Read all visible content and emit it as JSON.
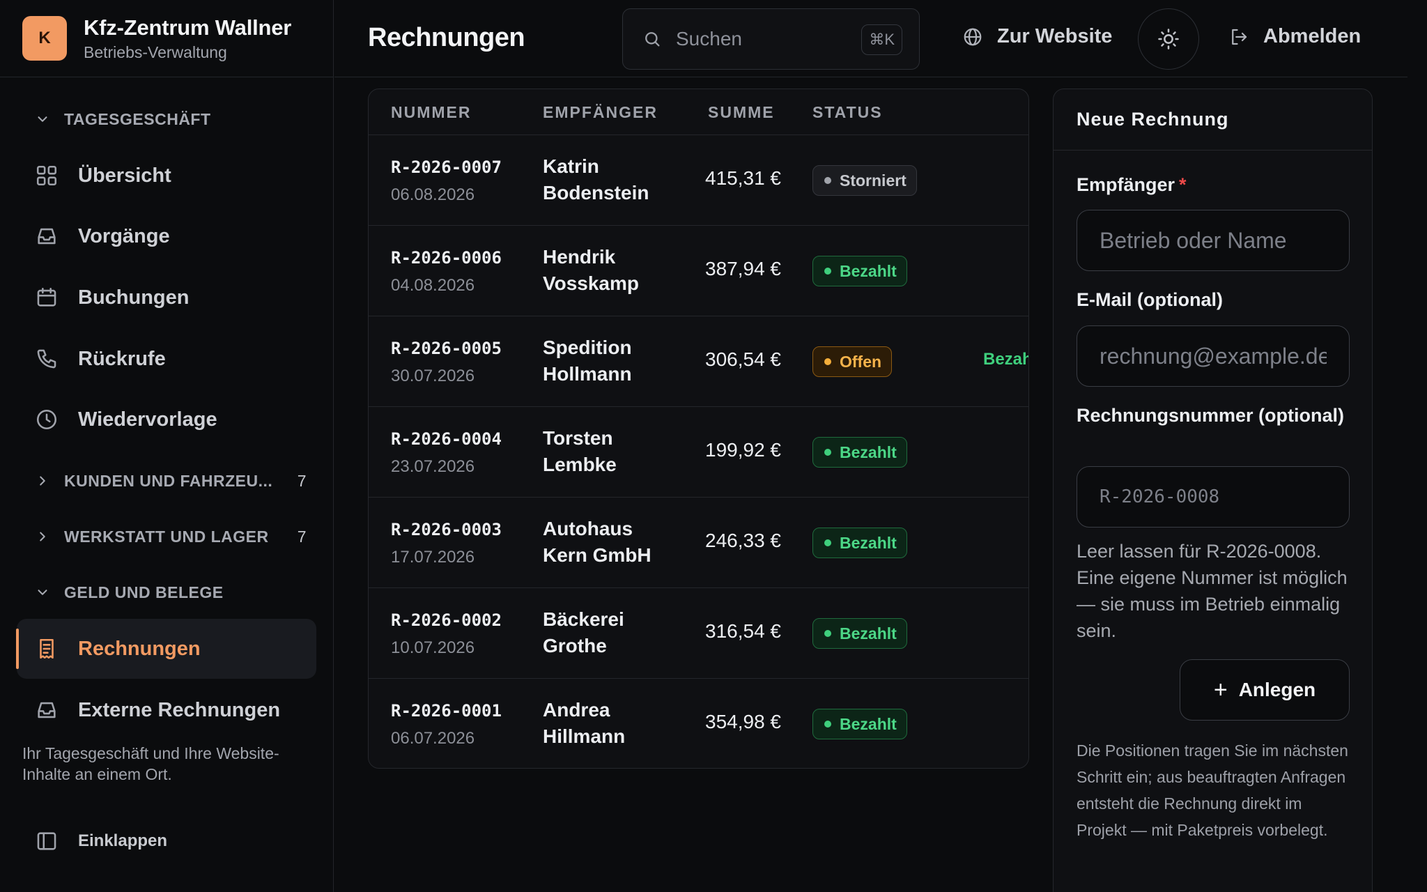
{
  "brand": {
    "logo_letter": "K",
    "title": "Kfz-Zentrum Wallner",
    "subtitle": "Betriebs-Verwaltung",
    "accent": "#f29a62"
  },
  "sidebar": {
    "groups": [
      {
        "label": "TAGESGESCHÄFT",
        "expanded": true
      },
      {
        "label": "KUNDEN UND FAHRZEU...",
        "count": "7",
        "expanded": false
      },
      {
        "label": "WERKSTATT UND LAGER",
        "count": "7",
        "expanded": false
      },
      {
        "label": "GELD UND BELEGE",
        "expanded": true
      }
    ],
    "items": [
      {
        "label": "Übersicht",
        "icon": "grid-icon"
      },
      {
        "label": "Vorgänge",
        "icon": "inbox-icon"
      },
      {
        "label": "Buchungen",
        "icon": "calendar-icon"
      },
      {
        "label": "Rückrufe",
        "icon": "phone-icon"
      },
      {
        "label": "Wiedervorlage",
        "icon": "clock-icon"
      },
      {
        "label": "Rechnungen",
        "icon": "receipt-icon",
        "active": true
      },
      {
        "label": "Externe Rechnungen",
        "icon": "inbox-icon"
      }
    ],
    "note": "Ihr Tagesgeschäft und Ihre Website-Inhalte an einem Ort.",
    "collapse_label": "Einklappen"
  },
  "topbar": {
    "title": "Rechnungen",
    "search_label": "Suchen",
    "search_shortcut": "⌘K",
    "website_label": "Zur Website",
    "logout_label": "Abmelden"
  },
  "table": {
    "headers": {
      "number": "NUMMER",
      "recipient": "EMPFÄNGER",
      "sum": "SUMME",
      "status": "STATUS"
    },
    "rows": [
      {
        "number": "R-2026-0007",
        "date": "06.08.2026",
        "recipient_line1": "Katrin",
        "recipient_line2": "Bodenstein",
        "sum": "415,31 €",
        "status": "Storniert"
      },
      {
        "number": "R-2026-0006",
        "date": "04.08.2026",
        "recipient_line1": "Hendrik",
        "recipient_line2": "Vosskamp",
        "sum": "387,94 €",
        "status": "Bezahlt"
      },
      {
        "number": "R-2026-0005",
        "date": "30.07.2026",
        "recipient_line1": "Spedition",
        "recipient_line2": "Hollmann",
        "sum": "306,54 €",
        "status": "Offen",
        "action": "Bezah"
      },
      {
        "number": "R-2026-0004",
        "date": "23.07.2026",
        "recipient_line1": "Torsten",
        "recipient_line2": "Lembke",
        "sum": "199,92 €",
        "status": "Bezahlt"
      },
      {
        "number": "R-2026-0003",
        "date": "17.07.2026",
        "recipient_line1": "Autohaus",
        "recipient_line2": "Kern GmbH",
        "sum": "246,33 €",
        "status": "Bezahlt"
      },
      {
        "number": "R-2026-0002",
        "date": "10.07.2026",
        "recipient_line1": "Bäckerei",
        "recipient_line2": "Grothe",
        "sum": "316,54 €",
        "status": "Bezahlt"
      },
      {
        "number": "R-2026-0001",
        "date": "06.07.2026",
        "recipient_line1": "Andrea",
        "recipient_line2": "Hillmann",
        "sum": "354,98 €",
        "status": "Bezahlt"
      }
    ],
    "status_colors": {
      "Bezahlt": "#3fcf7d",
      "Offen": "#f4ae3b",
      "Storniert": "#a1a4ab"
    }
  },
  "form": {
    "title": "Neue Rechnung",
    "recipient_label": "Empfänger",
    "required_mark": "*",
    "recipient_placeholder": "Betrieb oder Name",
    "email_label": "E-Mail (optional)",
    "email_placeholder": "rechnung@example.de",
    "number_label": "Rechnungsnummer (optional)",
    "number_placeholder": "R-2026-0008",
    "hint": "Leer lassen für R-2026-0008. Eine eigene Nummer ist möglich — sie muss im Betrieb einmalig sein.",
    "create_label": "Anlegen",
    "footer": "Die Positionen tragen Sie im nächsten Schritt ein; aus beauftragten Anfragen entsteht die Rechnung direkt im Projekt — mit Paketpreis vorbelegt."
  }
}
